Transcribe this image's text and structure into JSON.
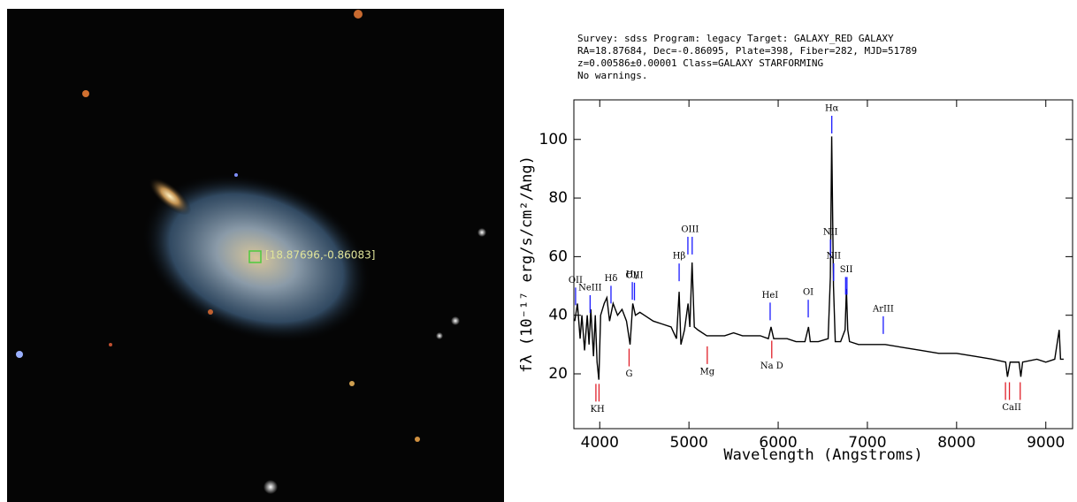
{
  "image": {
    "label": "[18.87696,-0.86083]"
  },
  "chart_data": {
    "type": "line",
    "header": [
      "Survey: sdss Program: legacy Target: GALAXY_RED GALAXY",
      "RA=18.87684, Dec=-0.86095, Plate=398, Fiber=282, MJD=51789",
      "z=0.00586±0.00001 Class=GALAXY STARFORMING",
      "No warnings."
    ],
    "xlabel": "Wavelength (Angstroms)",
    "ylabel": "fλ (10⁻¹⁷ erg/s/cm²/Ang)",
    "xlim": [
      3710,
      9300
    ],
    "ylim": [
      1.3,
      113.5
    ],
    "xticks": [
      4000,
      5000,
      6000,
      7000,
      8000,
      9000
    ],
    "yticks": [
      20,
      40,
      60,
      80,
      100
    ],
    "series": [
      {
        "color": "#000000",
        "x": [
          3720,
          3750,
          3780,
          3800,
          3830,
          3860,
          3880,
          3900,
          3930,
          3950,
          3970,
          3990,
          4010,
          4050,
          4080,
          4110,
          4150,
          4200,
          4250,
          4300,
          4340,
          4370,
          4400,
          4450,
          4500,
          4600,
          4700,
          4800,
          4860,
          4890,
          4910,
          4950,
          4990,
          5010,
          5035,
          5060,
          5100,
          5200,
          5300,
          5400,
          5500,
          5600,
          5700,
          5800,
          5890,
          5920,
          5950,
          6000,
          6100,
          6200,
          6300,
          6340,
          6360,
          6450,
          6560,
          6585,
          6600,
          6620,
          6640,
          6700,
          6750,
          6765,
          6780,
          6800,
          6900,
          7000,
          7200,
          7400,
          7600,
          7800,
          8000,
          8200,
          8400,
          8550,
          8570,
          8600,
          8700,
          8720,
          8740,
          8900,
          9000,
          9100,
          9150,
          9165,
          9200
        ],
        "values": [
          38,
          44,
          32,
          40,
          28,
          40,
          30,
          42,
          26,
          40,
          24,
          18,
          40,
          44,
          46,
          38,
          44,
          40,
          42,
          38,
          30,
          44,
          40,
          41,
          40,
          38,
          37,
          36,
          32,
          48,
          30,
          35,
          44,
          36,
          58,
          36,
          35,
          33,
          33,
          33,
          34,
          33,
          33,
          33,
          32,
          36,
          32,
          32,
          32,
          31,
          31,
          36,
          31,
          31,
          32,
          53,
          101,
          50,
          31,
          31,
          35,
          49,
          35,
          31,
          30,
          30,
          30,
          29,
          28,
          27,
          27,
          26,
          25,
          24,
          19,
          24,
          24,
          19,
          24,
          25,
          24,
          25,
          35,
          25,
          25
        ]
      }
    ],
    "lines": [
      {
        "label": "OII",
        "x": [
          3729
        ],
        "kind": "emission",
        "color": "#1a1aff"
      },
      {
        "label": "NeIII",
        "x": [
          3892
        ],
        "kind": "emission",
        "color": "#1a1aff"
      },
      {
        "label": "Hδ",
        "x": [
          4126
        ],
        "kind": "emission",
        "color": "#1a1aff"
      },
      {
        "label": "Hγ",
        "x": [
          4365
        ],
        "kind": "emission",
        "color": "#1a1aff"
      },
      {
        "label": "OIII",
        "x": [
          4389
        ],
        "kind": "emission",
        "color": "#1a1aff"
      },
      {
        "label": "Hβ",
        "x": [
          4890
        ],
        "kind": "emission",
        "color": "#1a1aff"
      },
      {
        "label": "OIII",
        "x": [
          4988,
          5036
        ],
        "kind": "emission",
        "color": "#1a1aff"
      },
      {
        "label": "HeI",
        "x": [
          5910
        ],
        "kind": "emission",
        "color": "#1a1aff"
      },
      {
        "label": "OI",
        "x": [
          6337
        ],
        "kind": "emission",
        "color": "#1a1aff"
      },
      {
        "label": "NII",
        "x": [
          6586
        ],
        "kind": "emission",
        "color": "#1a1aff"
      },
      {
        "label": "Hα",
        "x": [
          6601
        ],
        "kind": "emission",
        "color": "#1a1aff"
      },
      {
        "label": "NII",
        "x": [
          6622
        ],
        "kind": "emission",
        "color": "#1a1aff"
      },
      {
        "label": "SII",
        "x": [
          6756,
          6771
        ],
        "kind": "emission",
        "color": "#1a1aff"
      },
      {
        "label": "ArIII",
        "x": [
          7178
        ],
        "kind": "emission",
        "color": "#1a1aff"
      },
      {
        "label": "KH",
        "x": [
          3957,
          3992
        ],
        "kind": "absorption",
        "color": "#e0202a"
      },
      {
        "label": "G",
        "x": [
          4329
        ],
        "kind": "absorption",
        "color": "#e0202a"
      },
      {
        "label": "Mg",
        "x": [
          5205
        ],
        "kind": "absorption",
        "color": "#e0202a"
      },
      {
        "label": "Na D",
        "x": [
          5928
        ],
        "kind": "absorption",
        "color": "#e0202a"
      },
      {
        "label": "CaII",
        "x": [
          8548,
          8592,
          8713
        ],
        "kind": "absorption",
        "color": "#e0202a"
      }
    ]
  }
}
